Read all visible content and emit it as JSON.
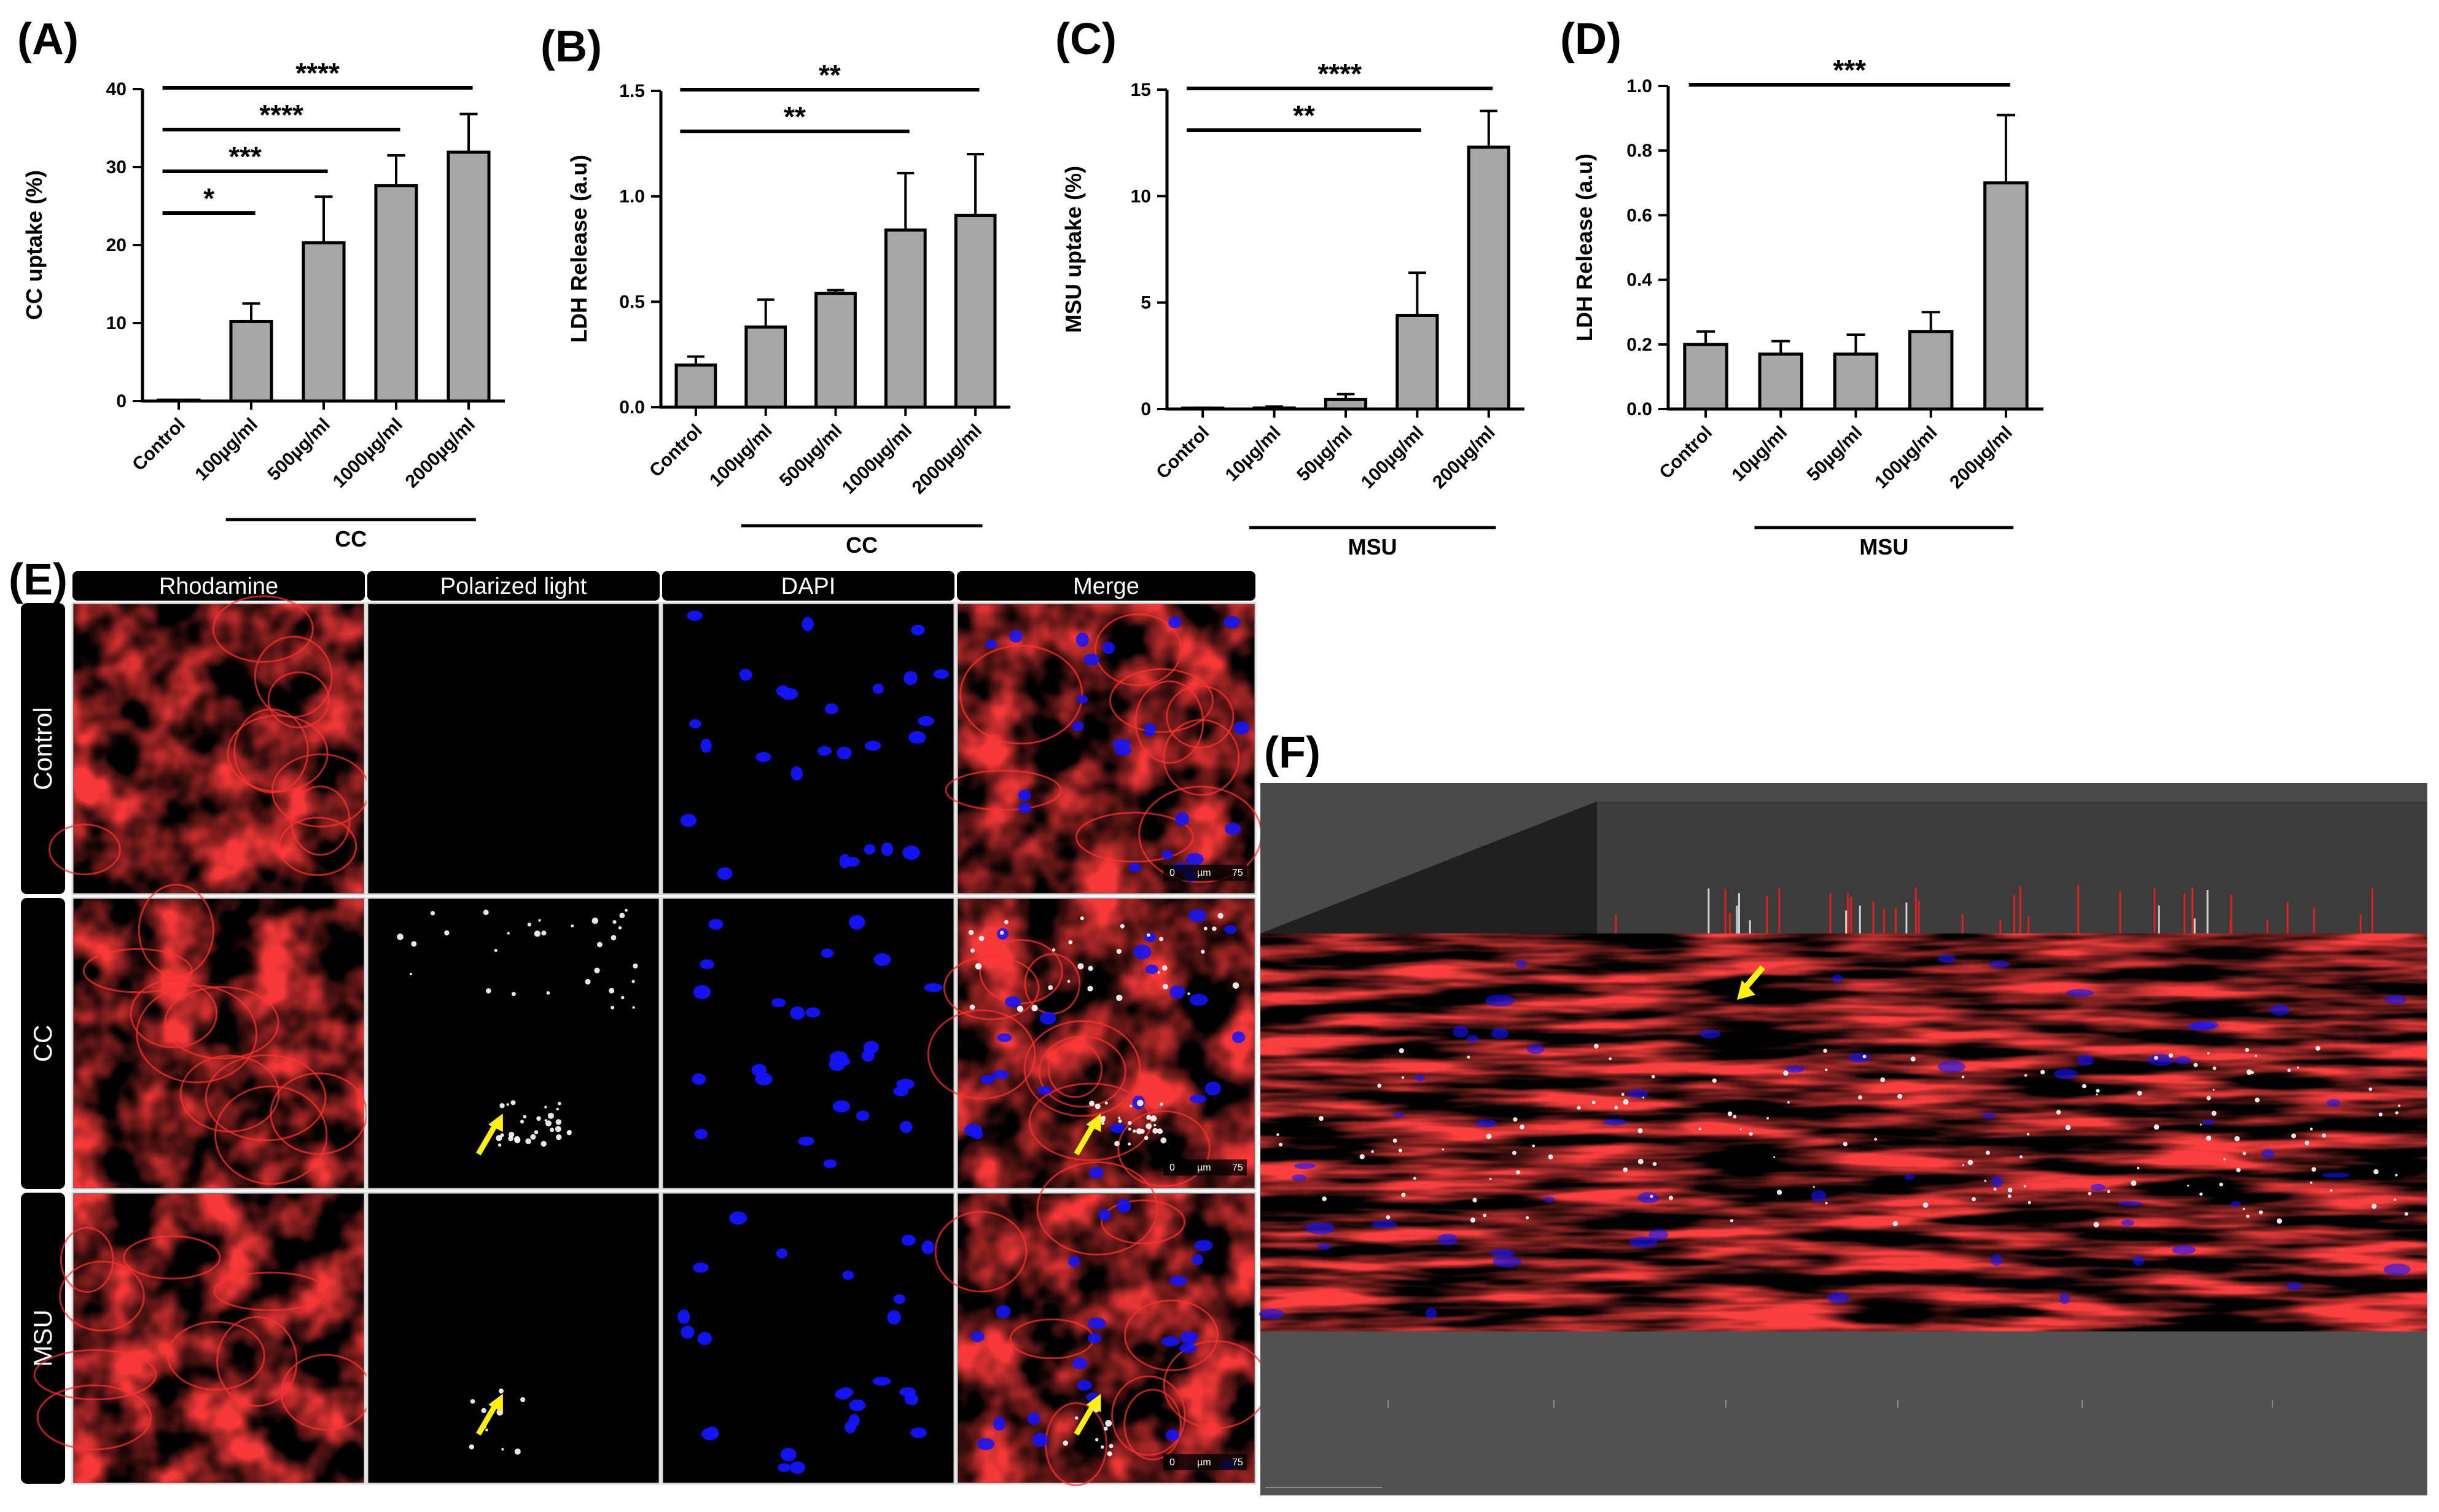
{
  "colors": {
    "bar_fill": "#a7a7a7",
    "bar_stroke": "#000000",
    "stain_red": "#e01010",
    "stain_blue": "#1414ff",
    "crystal_white": "#ffffff",
    "arrow_yellow": "#ffef14",
    "stage_gray": "#4a4a4a",
    "header_bar": "#000000"
  },
  "chart_data": [
    {
      "panel": "(A)",
      "type": "bar",
      "ylabel": "CC uptake (%)",
      "ylim": [
        0,
        40
      ],
      "yticks": [
        "0",
        "10",
        "20",
        "30",
        "40"
      ],
      "categories": [
        "Control",
        "100µg/ml",
        "500µg/ml",
        "1000µg/ml",
        "2000µg/ml"
      ],
      "values": [
        0,
        10.2,
        20.3,
        27.6,
        31.9
      ],
      "errors": [
        0,
        2.3,
        5.9,
        3.9,
        4.9
      ],
      "group": {
        "label": "CC",
        "from": 1,
        "to": 4
      },
      "significance": [
        {
          "from": 0,
          "to": 1,
          "label": "*"
        },
        {
          "from": 0,
          "to": 2,
          "label": "***"
        },
        {
          "from": 0,
          "to": 3,
          "label": "****"
        },
        {
          "from": 0,
          "to": 4,
          "label": "****"
        }
      ]
    },
    {
      "panel": "(B)",
      "type": "bar",
      "ylabel": "LDH Release (a.u)",
      "ylim": [
        0,
        1.5
      ],
      "yticks": [
        "0.0",
        "0.5",
        "1.0",
        "1.5"
      ],
      "categories": [
        "Control",
        "100µg/ml",
        "500µg/ml",
        "1000µg/ml",
        "2000µg/ml"
      ],
      "values": [
        0.2,
        0.38,
        0.54,
        0.84,
        0.91
      ],
      "errors": [
        0.04,
        0.13,
        0.015,
        0.27,
        0.29
      ],
      "group": {
        "label": "CC",
        "from": 1,
        "to": 4
      },
      "significance": [
        {
          "from": 0,
          "to": 3,
          "label": "**"
        },
        {
          "from": 0,
          "to": 4,
          "label": "**"
        }
      ]
    },
    {
      "panel": "(C)",
      "type": "bar",
      "ylabel": "MSU uptake (%)",
      "ylim": [
        0,
        15
      ],
      "yticks": [
        "0",
        "5",
        "10",
        "15"
      ],
      "categories": [
        "Control",
        "10µg/ml",
        "50µg/ml",
        "100µg/ml",
        "200µg/ml"
      ],
      "values": [
        0.02,
        0.05,
        0.45,
        4.4,
        12.3
      ],
      "errors": [
        0.04,
        0.06,
        0.25,
        2.0,
        1.7
      ],
      "group": {
        "label": "MSU",
        "from": 1,
        "to": 4
      },
      "significance": [
        {
          "from": 0,
          "to": 3,
          "label": "**"
        },
        {
          "from": 0,
          "to": 4,
          "label": "****"
        }
      ]
    },
    {
      "panel": "(D)",
      "type": "bar",
      "ylabel": "LDH Release (a.u)",
      "ylim": [
        0,
        1.0
      ],
      "yticks": [
        "0.0",
        "0.2",
        "0.4",
        "0.6",
        "0.8",
        "1.0"
      ],
      "categories": [
        "Control",
        "10µg/ml",
        "50µg/ml",
        "100µg/ml",
        "200µg/ml"
      ],
      "values": [
        0.2,
        0.17,
        0.17,
        0.24,
        0.7
      ],
      "errors": [
        0.04,
        0.04,
        0.06,
        0.06,
        0.21
      ],
      "group": {
        "label": "MSU",
        "from": 1,
        "to": 4
      },
      "significance": [
        {
          "from": 0,
          "to": 4,
          "label": "***"
        }
      ]
    }
  ],
  "micrographs": {
    "panel": "(E)",
    "columns": [
      "Rhodamine",
      "Polarized light",
      "DAPI",
      "Merge"
    ],
    "rows": [
      "Control",
      "CC",
      "MSU"
    ],
    "scale_bar": {
      "zero": "0",
      "unit": "µm",
      "value": "75"
    }
  },
  "render3d": {
    "panel": "(F)"
  }
}
